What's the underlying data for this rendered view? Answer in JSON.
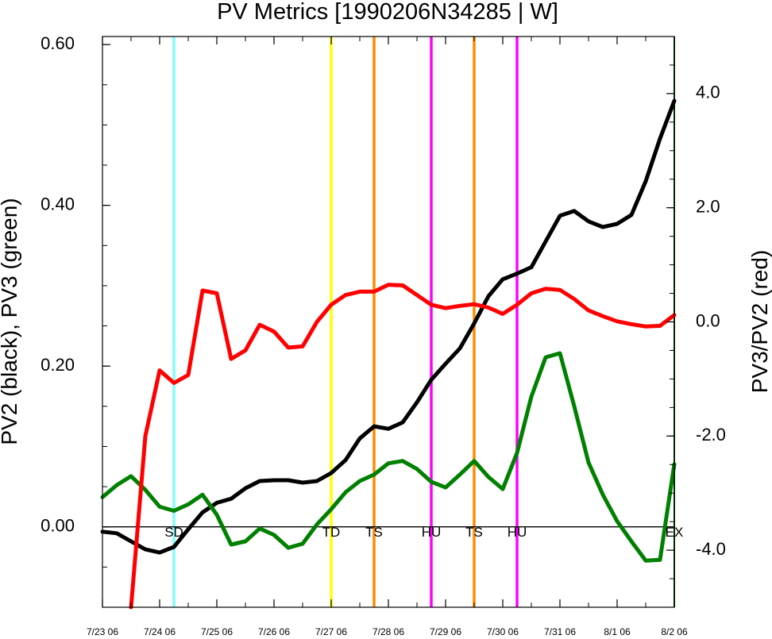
{
  "chart_data": {
    "type": "line",
    "title": "PV Metrics [1990206N34285 | W]",
    "ylabel_left": "PV2 (black), PV3 (green)",
    "ylabel_right": "PV3/PV2 (red)",
    "ylim_left": [
      -0.1,
      0.61
    ],
    "ylim_right": [
      -5.0,
      5.0
    ],
    "xlim": [
      0,
      10
    ],
    "left_ticks": [
      {
        "value": 0.6,
        "label": "0.60"
      },
      {
        "value": 0.4,
        "label": "0.40"
      },
      {
        "value": 0.2,
        "label": "0.20"
      },
      {
        "value": 0.0,
        "label": "0.00"
      }
    ],
    "right_ticks": [
      {
        "value": 4.0,
        "label": "4.0"
      },
      {
        "value": 2.0,
        "label": "2.0"
      },
      {
        "value": 0.0,
        "label": "0.0"
      },
      {
        "value": -2.0,
        "label": "-2.0"
      },
      {
        "value": -4.0,
        "label": "-4.0"
      }
    ],
    "x_ticks": [
      {
        "value": 0,
        "label": "7/23 06"
      },
      {
        "value": 1,
        "label": "7/24 06"
      },
      {
        "value": 2,
        "label": "7/25 06"
      },
      {
        "value": 3,
        "label": "7/26 06"
      },
      {
        "value": 4,
        "label": "7/27 06"
      },
      {
        "value": 5,
        "label": "7/28 06"
      },
      {
        "value": 6,
        "label": "7/29 06"
      },
      {
        "value": 7,
        "label": "7/30 06"
      },
      {
        "value": 8,
        "label": "7/31 06"
      },
      {
        "value": 9,
        "label": "8/1 06"
      },
      {
        "value": 10,
        "label": "8/2 06"
      }
    ],
    "series": [
      {
        "color": "#000000",
        "axis": "left",
        "x": [
          0,
          0.25,
          0.5,
          0.75,
          1,
          1.25,
          1.5,
          1.75,
          2,
          2.25,
          2.5,
          2.75,
          3,
          3.25,
          3.5,
          3.75,
          4,
          4.25,
          4.5,
          4.75,
          5,
          5.25,
          5.5,
          5.75,
          6,
          6.25,
          6.5,
          6.75,
          7,
          7.25,
          7.5,
          7.75,
          8,
          8.25,
          8.5,
          8.75,
          9,
          9.25,
          9.5,
          9.75,
          10
        ],
        "y": [
          -0.006,
          -0.008,
          -0.018,
          -0.028,
          -0.032,
          -0.025,
          -0.003,
          0.018,
          0.03,
          0.035,
          0.048,
          0.057,
          0.058,
          0.058,
          0.055,
          0.057,
          0.067,
          0.083,
          0.11,
          0.125,
          0.122,
          0.13,
          0.155,
          0.183,
          0.203,
          0.222,
          0.253,
          0.287,
          0.308,
          0.315,
          0.323,
          0.355,
          0.387,
          0.393,
          0.38,
          0.373,
          0.377,
          0.388,
          0.43,
          0.483,
          0.53
        ]
      },
      {
        "color": "#008000",
        "axis": "left",
        "x": [
          0,
          0.25,
          0.5,
          0.75,
          1,
          1.25,
          1.5,
          1.75,
          2,
          2.25,
          2.5,
          2.75,
          3,
          3.25,
          3.5,
          3.75,
          4,
          4.25,
          4.5,
          4.75,
          5,
          5.25,
          5.5,
          5.75,
          6,
          6.25,
          6.5,
          6.75,
          7,
          7.25,
          7.5,
          7.75,
          8,
          8.25,
          8.5,
          8.75,
          9,
          9.25,
          9.5,
          9.75,
          10
        ],
        "y": [
          0.037,
          0.052,
          0.063,
          0.046,
          0.025,
          0.02,
          0.028,
          0.04,
          0.015,
          -0.022,
          -0.018,
          -0.002,
          -0.01,
          -0.026,
          -0.021,
          0.003,
          0.022,
          0.043,
          0.057,
          0.065,
          0.079,
          0.082,
          0.072,
          0.056,
          0.049,
          0.065,
          0.082,
          0.062,
          0.047,
          0.092,
          0.162,
          0.211,
          0.216,
          0.15,
          0.08,
          0.04,
          0.007,
          -0.018,
          -0.042,
          -0.041,
          0.078
        ]
      },
      {
        "color": "#ff0000",
        "axis": "right",
        "x": [
          0.5,
          0.75,
          1,
          1.25,
          1.5,
          1.75,
          2,
          2.25,
          2.5,
          2.75,
          3,
          3.25,
          3.5,
          3.75,
          4,
          4.25,
          4.5,
          4.75,
          5,
          5.25,
          5.5,
          5.75,
          6,
          6.25,
          6.5,
          6.75,
          7,
          7.25,
          7.5,
          7.75,
          8,
          8.25,
          8.5,
          8.75,
          9,
          9.25,
          9.5,
          9.75,
          10
        ],
        "y": [
          -5.0,
          -2.0,
          -0.85,
          -1.07,
          -0.93,
          0.55,
          0.5,
          -0.65,
          -0.5,
          -0.05,
          -0.17,
          -0.45,
          -0.43,
          0.0,
          0.3,
          0.47,
          0.53,
          0.53,
          0.65,
          0.64,
          0.47,
          0.3,
          0.24,
          0.28,
          0.31,
          0.25,
          0.14,
          0.3,
          0.5,
          0.58,
          0.56,
          0.4,
          0.2,
          0.1,
          0.01,
          -0.04,
          -0.08,
          -0.07,
          0.12
        ]
      }
    ],
    "markers": [
      {
        "x": 1.25,
        "label": "SD",
        "color": "#80ffff"
      },
      {
        "x": 4.0,
        "label": "TD",
        "color": "#ffff00"
      },
      {
        "x": 4.75,
        "label": "TS",
        "color": "#ff8c00"
      },
      {
        "x": 5.75,
        "label": "HU",
        "color": "#ff00ff"
      },
      {
        "x": 6.5,
        "label": "TS",
        "color": "#ff8c00"
      },
      {
        "x": 7.25,
        "label": "HU",
        "color": "#ff00ff"
      },
      {
        "x": 10.0,
        "label": "EX",
        "color": "#006400"
      }
    ],
    "zero_line": true,
    "grid": false
  }
}
